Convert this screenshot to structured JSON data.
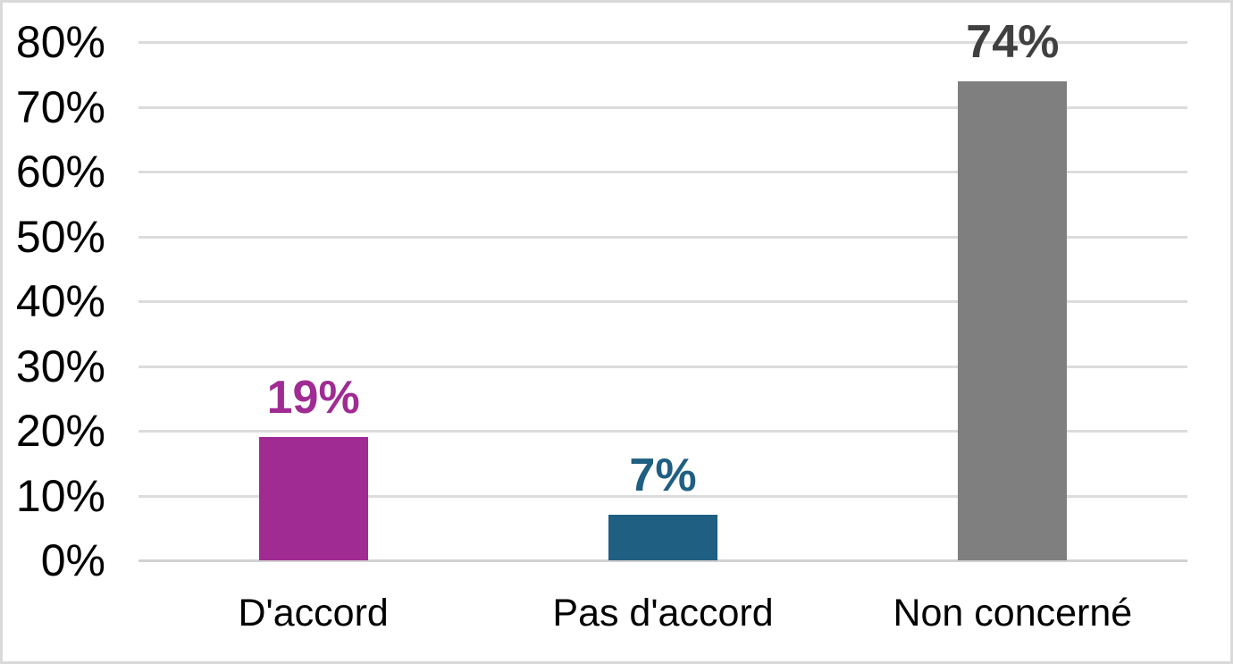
{
  "chart_data": {
    "type": "bar",
    "title": "",
    "xlabel": "",
    "ylabel": "",
    "categories": [
      "D'accord",
      "Pas d'accord",
      "Non concerné"
    ],
    "values": [
      19,
      7,
      74
    ],
    "value_labels": [
      "19%",
      "7%",
      "74%"
    ],
    "bar_colors": [
      "#A02B93",
      "#1F5F82",
      "#7F7F7F"
    ],
    "value_label_colors": [
      "#A02B93",
      "#1F5F82",
      "#404040"
    ],
    "ylim": [
      0,
      80
    ],
    "ytick_values": [
      0,
      10,
      20,
      30,
      40,
      50,
      60,
      70,
      80
    ],
    "ytick_labels": [
      "0%",
      "10%",
      "20%",
      "30%",
      "40%",
      "50%",
      "60%",
      "70%",
      "80%"
    ],
    "grid": true,
    "legend": false,
    "colors": {
      "gridline": "#DCDCDC",
      "axis_line": "#D2D2D2",
      "tick_text": "#000000",
      "category_text": "#000000",
      "background": "#FFFFFF",
      "frame_border": "#D9D9D9"
    }
  }
}
